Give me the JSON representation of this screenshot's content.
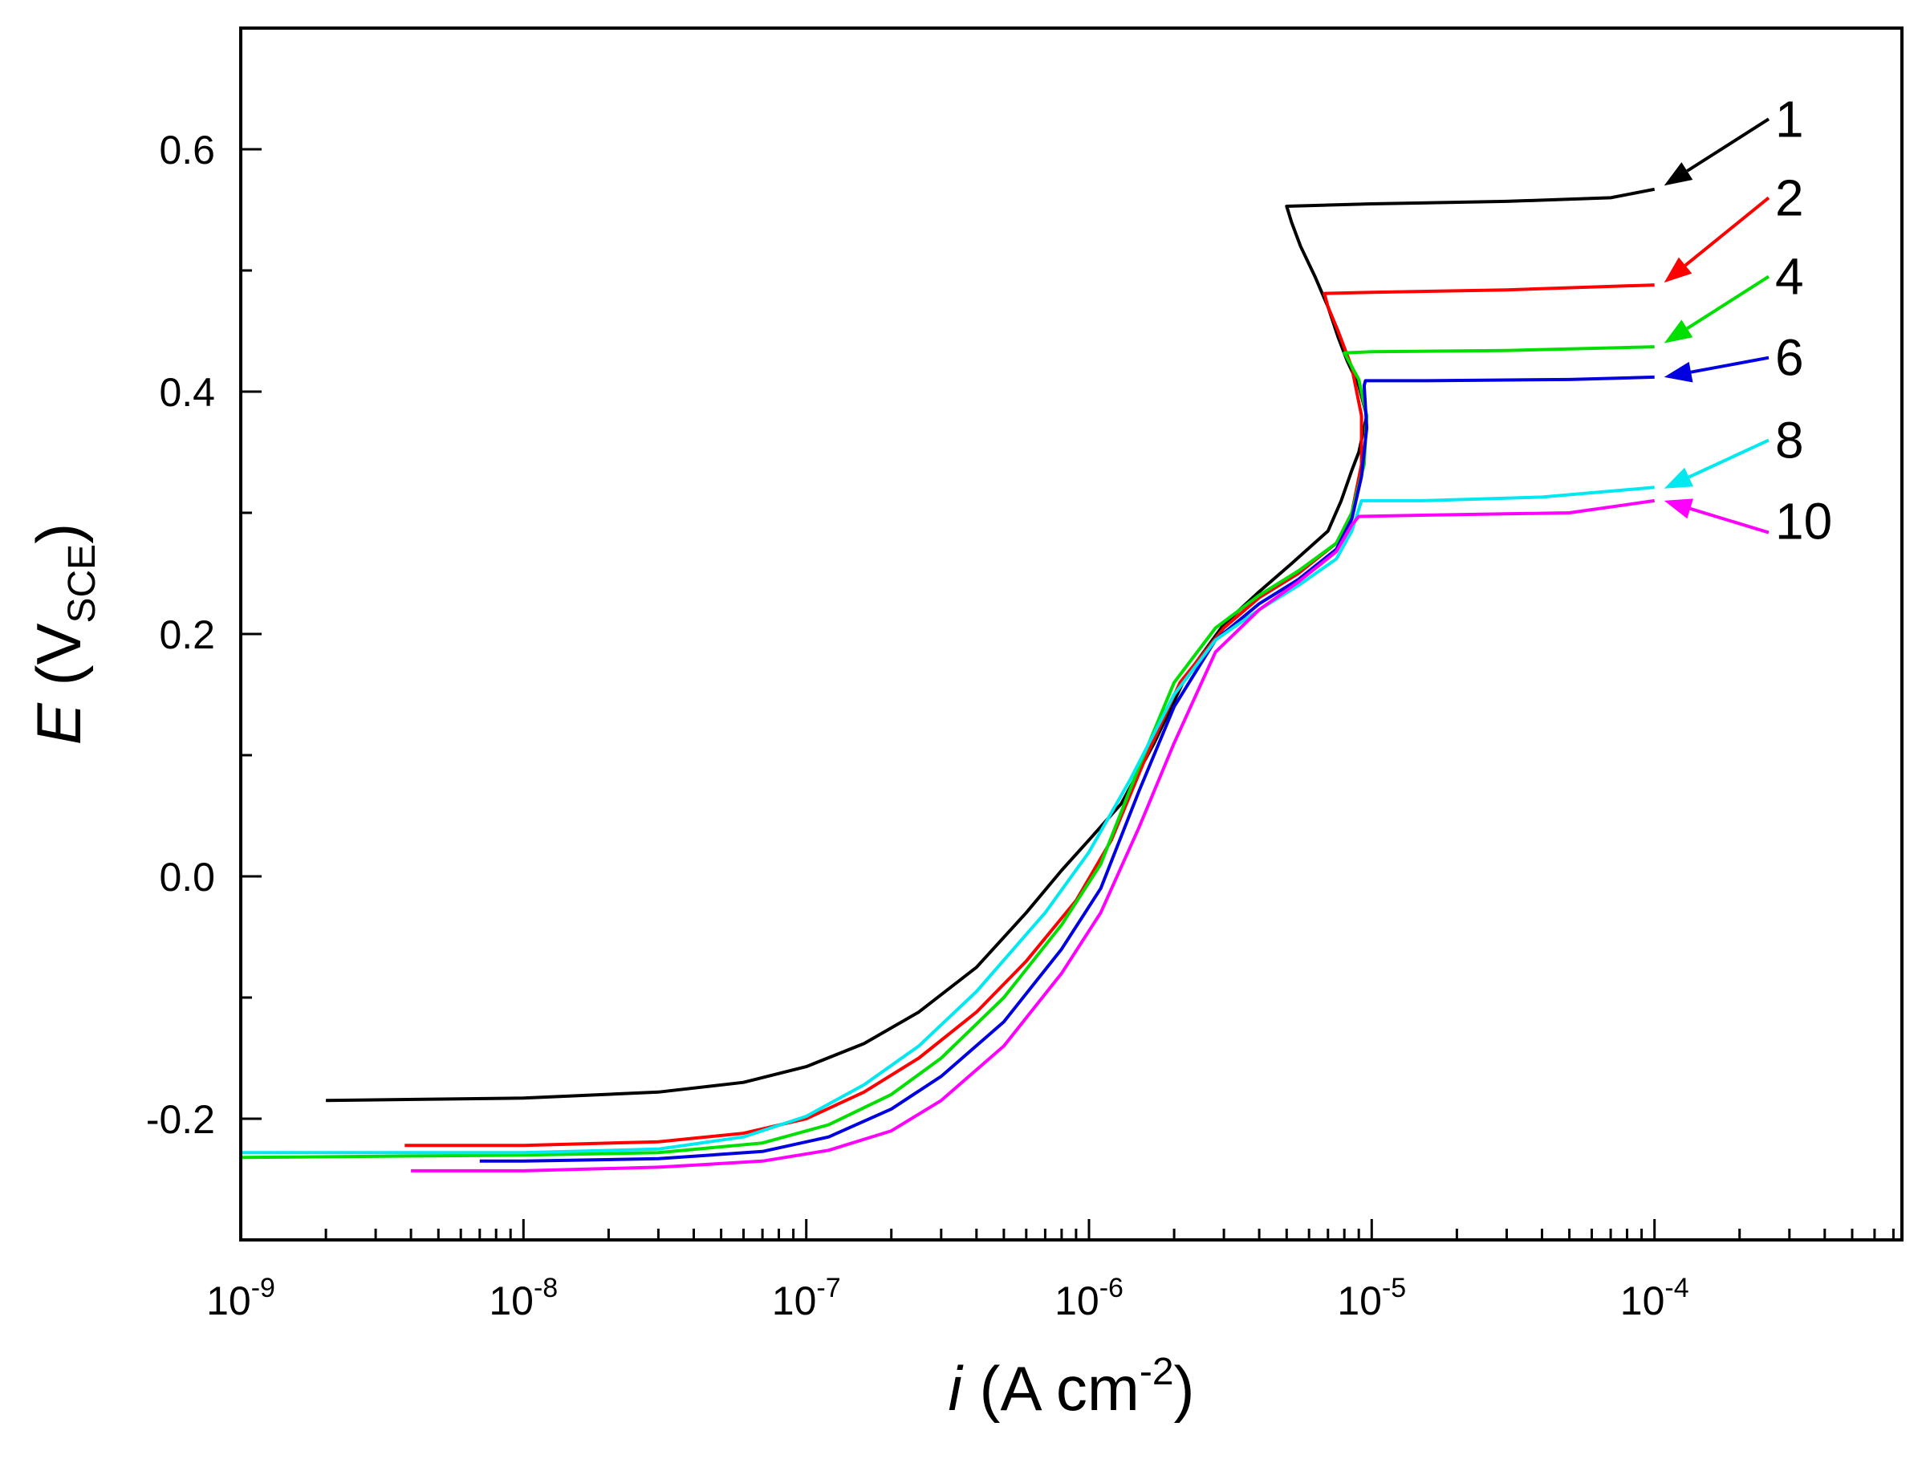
{
  "chart_data": {
    "type": "line",
    "x_scale": "log",
    "xlim": [
      1e-09,
      0.00075
    ],
    "ylim": [
      -0.3,
      0.7
    ],
    "xlabel": {
      "var": "i",
      "rest": " (A cm",
      "exp": "-2",
      "close": ")"
    },
    "ylabel": {
      "var": "E",
      "rest": " (V",
      "sub": "SCE",
      "close": ")"
    },
    "x_ticks": [
      {
        "value": 1e-09,
        "base": "10",
        "exp": "-9"
      },
      {
        "value": 1e-08,
        "base": "10",
        "exp": "-8"
      },
      {
        "value": 1e-07,
        "base": "10",
        "exp": "-7"
      },
      {
        "value": 1e-06,
        "base": "10",
        "exp": "-6"
      },
      {
        "value": 1e-05,
        "base": "10",
        "exp": "-5"
      },
      {
        "value": 0.0001,
        "base": "10",
        "exp": "-4"
      }
    ],
    "y_ticks": [
      {
        "value": 0.6,
        "label": "0.6"
      },
      {
        "value": 0.4,
        "label": "0.4"
      },
      {
        "value": 0.2,
        "label": "0.2"
      },
      {
        "value": 0.0,
        "label": "0.0"
      },
      {
        "value": -0.2,
        "label": "-0.2"
      }
    ],
    "series": [
      {
        "name": "1",
        "color": "#000000",
        "label_y": 0.625,
        "arrow_end": [
          0.0001,
          0.57
        ],
        "points": [
          [
            2e-09,
            -0.185
          ],
          [
            1e-08,
            -0.183
          ],
          [
            3e-08,
            -0.178
          ],
          [
            6e-08,
            -0.17
          ],
          [
            1e-07,
            -0.157
          ],
          [
            1.6e-07,
            -0.138
          ],
          [
            2.5e-07,
            -0.112
          ],
          [
            4e-07,
            -0.075
          ],
          [
            6e-07,
            -0.03
          ],
          [
            8e-07,
            0.005
          ],
          [
            1e-06,
            0.03
          ],
          [
            1.3e-06,
            0.06
          ],
          [
            1.7e-06,
            0.11
          ],
          [
            2.2e-06,
            0.165
          ],
          [
            3e-06,
            0.208
          ],
          [
            4e-06,
            0.235
          ],
          [
            5.2e-06,
            0.258
          ],
          [
            7e-06,
            0.285
          ],
          [
            7.8e-06,
            0.31
          ],
          [
            8.5e-06,
            0.335
          ],
          [
            9e-06,
            0.35
          ],
          [
            9.6e-06,
            0.38
          ],
          [
            9e-06,
            0.405
          ],
          [
            8.2e-06,
            0.425
          ],
          [
            7.6e-06,
            0.445
          ],
          [
            7e-06,
            0.47
          ],
          [
            6.3e-06,
            0.495
          ],
          [
            5.6e-06,
            0.52
          ],
          [
            5.2e-06,
            0.54
          ],
          [
            5e-06,
            0.553
          ],
          [
            1e-05,
            0.555
          ],
          [
            3e-05,
            0.557
          ],
          [
            7e-05,
            0.56
          ],
          [
            0.0001,
            0.567
          ]
        ]
      },
      {
        "name": "2",
        "color": "#ff0000",
        "label_y": 0.56,
        "arrow_end": [
          0.0001,
          0.49
        ],
        "points": [
          [
            3.8e-09,
            -0.222
          ],
          [
            1e-08,
            -0.222
          ],
          [
            3e-08,
            -0.219
          ],
          [
            6e-08,
            -0.212
          ],
          [
            1e-07,
            -0.2
          ],
          [
            1.6e-07,
            -0.178
          ],
          [
            2.5e-07,
            -0.15
          ],
          [
            4e-07,
            -0.112
          ],
          [
            6e-07,
            -0.07
          ],
          [
            9e-07,
            -0.02
          ],
          [
            1.2e-06,
            0.03
          ],
          [
            1.6e-06,
            0.1
          ],
          [
            2.1e-06,
            0.16
          ],
          [
            3e-06,
            0.205
          ],
          [
            4e-06,
            0.23
          ],
          [
            5.5e-06,
            0.25
          ],
          [
            7.5e-06,
            0.275
          ],
          [
            8.5e-06,
            0.3
          ],
          [
            9.2e-06,
            0.34
          ],
          [
            9.2e-06,
            0.38
          ],
          [
            8.5e-06,
            0.42
          ],
          [
            7.6e-06,
            0.45
          ],
          [
            7e-06,
            0.47
          ],
          [
            6.8e-06,
            0.481
          ],
          [
            1e-05,
            0.482
          ],
          [
            3e-05,
            0.484
          ],
          [
            0.0001,
            0.488
          ]
        ]
      },
      {
        "name": "4",
        "color": "#00e000",
        "label_y": 0.495,
        "arrow_end": [
          0.0001,
          0.44
        ],
        "points": [
          [
            1e-09,
            -0.232
          ],
          [
            1e-08,
            -0.23
          ],
          [
            3e-08,
            -0.228
          ],
          [
            7e-08,
            -0.22
          ],
          [
            1.2e-07,
            -0.205
          ],
          [
            2e-07,
            -0.18
          ],
          [
            3e-07,
            -0.15
          ],
          [
            5e-07,
            -0.1
          ],
          [
            8e-07,
            -0.04
          ],
          [
            1.1e-06,
            0.01
          ],
          [
            1.5e-06,
            0.09
          ],
          [
            2e-06,
            0.16
          ],
          [
            2.8e-06,
            0.205
          ],
          [
            4e-06,
            0.232
          ],
          [
            5.5e-06,
            0.252
          ],
          [
            7.5e-06,
            0.275
          ],
          [
            8.5e-06,
            0.3
          ],
          [
            9.4e-06,
            0.34
          ],
          [
            9.6e-06,
            0.38
          ],
          [
            9e-06,
            0.41
          ],
          [
            8e-06,
            0.432
          ],
          [
            1e-05,
            0.433
          ],
          [
            3e-05,
            0.434
          ],
          [
            0.0001,
            0.437
          ]
        ]
      },
      {
        "name": "6",
        "color": "#0000e0",
        "label_y": 0.428,
        "arrow_end": [
          0.0001,
          0.412
        ],
        "points": [
          [
            7e-09,
            -0.235
          ],
          [
            1e-08,
            -0.235
          ],
          [
            3e-08,
            -0.233
          ],
          [
            7e-08,
            -0.227
          ],
          [
            1.2e-07,
            -0.215
          ],
          [
            2e-07,
            -0.192
          ],
          [
            3e-07,
            -0.165
          ],
          [
            5e-07,
            -0.12
          ],
          [
            8e-07,
            -0.06
          ],
          [
            1.1e-06,
            -0.01
          ],
          [
            1.5e-06,
            0.07
          ],
          [
            2e-06,
            0.14
          ],
          [
            2.8e-06,
            0.195
          ],
          [
            4e-06,
            0.225
          ],
          [
            5.5e-06,
            0.245
          ],
          [
            7.5e-06,
            0.27
          ],
          [
            8.5e-06,
            0.295
          ],
          [
            9.2e-06,
            0.33
          ],
          [
            9.6e-06,
            0.37
          ],
          [
            9.4e-06,
            0.405
          ],
          [
            9.5e-06,
            0.409
          ],
          [
            1.5e-05,
            0.409
          ],
          [
            5e-05,
            0.41
          ],
          [
            0.0001,
            0.412
          ]
        ]
      },
      {
        "name": "8",
        "color": "#00e8f0",
        "label_y": 0.36,
        "arrow_end": [
          0.0001,
          0.32
        ],
        "points": [
          [
            1e-09,
            -0.228
          ],
          [
            1e-08,
            -0.228
          ],
          [
            3e-08,
            -0.225
          ],
          [
            6e-08,
            -0.215
          ],
          [
            1e-07,
            -0.198
          ],
          [
            1.6e-07,
            -0.172
          ],
          [
            2.5e-07,
            -0.14
          ],
          [
            4e-07,
            -0.095
          ],
          [
            7e-07,
            -0.03
          ],
          [
            1e-06,
            0.02
          ],
          [
            1.4e-06,
            0.08
          ],
          [
            2e-06,
            0.15
          ],
          [
            2.8e-06,
            0.195
          ],
          [
            4e-06,
            0.22
          ],
          [
            5.5e-06,
            0.24
          ],
          [
            7.5e-06,
            0.262
          ],
          [
            8.5e-06,
            0.285
          ],
          [
            9.2e-06,
            0.31
          ],
          [
            1.5e-05,
            0.31
          ],
          [
            4e-05,
            0.313
          ],
          [
            0.0001,
            0.321
          ]
        ]
      },
      {
        "name": "10",
        "color": "#ff00ff",
        "label_y": 0.293,
        "arrow_end": [
          0.0001,
          0.31
        ],
        "points": [
          [
            4e-09,
            -0.243
          ],
          [
            1e-08,
            -0.243
          ],
          [
            3e-08,
            -0.24
          ],
          [
            7e-08,
            -0.235
          ],
          [
            1.2e-07,
            -0.226
          ],
          [
            2e-07,
            -0.21
          ],
          [
            3e-07,
            -0.185
          ],
          [
            5e-07,
            -0.14
          ],
          [
            8e-07,
            -0.08
          ],
          [
            1.1e-06,
            -0.03
          ],
          [
            1.5e-06,
            0.04
          ],
          [
            2e-06,
            0.11
          ],
          [
            2.8e-06,
            0.185
          ],
          [
            4e-06,
            0.22
          ],
          [
            5.5e-06,
            0.243
          ],
          [
            7.5e-06,
            0.268
          ],
          [
            8.5e-06,
            0.29
          ],
          [
            9e-06,
            0.297
          ],
          [
            1.5e-05,
            0.298
          ],
          [
            5e-05,
            0.3
          ],
          [
            0.0001,
            0.31
          ]
        ]
      }
    ]
  }
}
